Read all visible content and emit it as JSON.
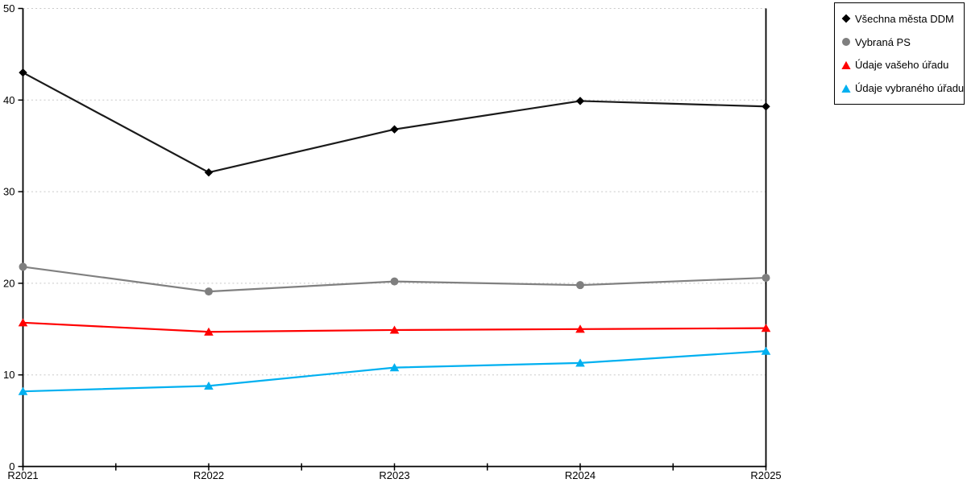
{
  "chart_data": {
    "type": "line",
    "title": "",
    "xlabel": "",
    "ylabel": "",
    "categories": [
      "R2021",
      "R2022",
      "R2023",
      "R2024",
      "R2025"
    ],
    "series": [
      {
        "name": "Všechna města DDM",
        "marker": "diamond",
        "color": "#1A1A1A",
        "marker_color": "#000000",
        "values": [
          43.0,
          32.1,
          36.8,
          39.9,
          39.3
        ]
      },
      {
        "name": "Vybraná PS",
        "marker": "circle",
        "color": "#808080",
        "marker_color": "#7F7F7F",
        "values": [
          21.8,
          19.1,
          20.2,
          19.8,
          20.6
        ]
      },
      {
        "name": "Údaje vašeho úřadu",
        "marker": "triangle",
        "color": "#FF0000",
        "marker_color": "#FF0000",
        "values": [
          15.7,
          14.7,
          14.9,
          15.0,
          15.1
        ]
      },
      {
        "name": "Údaje vybraného úřadu",
        "marker": "triangle",
        "color": "#00B0F0",
        "marker_color": "#00B0F0",
        "values": [
          8.2,
          8.8,
          10.8,
          11.3,
          12.6
        ]
      }
    ],
    "ylim": [
      0,
      50
    ],
    "ytick_interval": 10,
    "y_tick_labels": [
      "0",
      "10",
      "20",
      "30",
      "40",
      "50"
    ],
    "grid": "horizontal-dashed",
    "gridline_color": "#C8C8C8",
    "axis_color": "#000000",
    "legend_position": "top-right",
    "plot_background": "#FFFFFF"
  }
}
